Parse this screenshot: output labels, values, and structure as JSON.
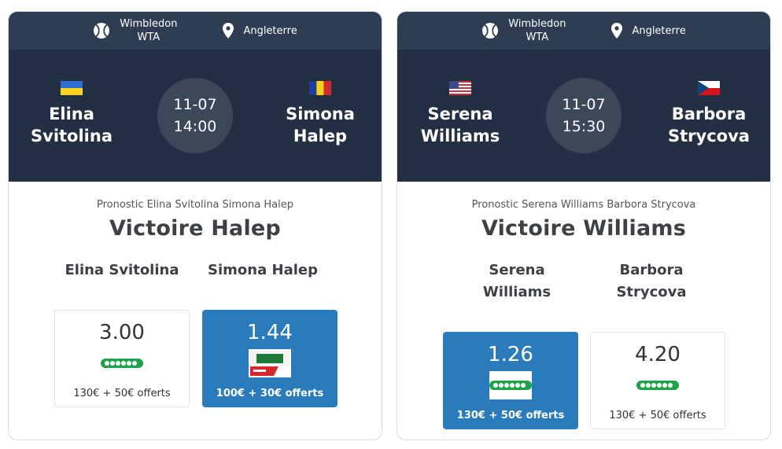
{
  "cards": [
    {
      "competition_line1": "Wimbledon",
      "competition_line2": "WTA",
      "country": "Angleterre",
      "player1": {
        "line1": "Elina",
        "line2": "Svitolina",
        "flag": "ukraine-flag"
      },
      "player2": {
        "line1": "Simona",
        "line2": "Halep",
        "flag": "romania-flag"
      },
      "date": "11-07",
      "time": "14:00",
      "pronostic_label": "Pronostic Elina Svitolina Simona Halep",
      "verdict": "Victoire Halep",
      "odds": [
        {
          "name_line1": "Elina Svitolina",
          "name_line2": "",
          "value": "3.00",
          "bookmaker": "unibet-logo",
          "bonus": "130€ + 50€ offerts",
          "selected": false
        },
        {
          "name_line1": "Simona Halep",
          "name_line2": "",
          "value": "1.44",
          "bookmaker": "pmu-sport-logo",
          "bonus": "100€ + 30€ offerts",
          "selected": true
        }
      ]
    },
    {
      "competition_line1": "Wimbledon",
      "competition_line2": "WTA",
      "country": "Angleterre",
      "player1": {
        "line1": "Serena",
        "line2": "Williams",
        "flag": "usa-flag"
      },
      "player2": {
        "line1": "Barbora",
        "line2": "Strycova",
        "flag": "czech-flag"
      },
      "date": "11-07",
      "time": "15:30",
      "pronostic_label": "Pronostic Serena Williams Barbora Strycova",
      "verdict": "Victoire Williams",
      "odds": [
        {
          "name_line1": "Serena",
          "name_line2": "Williams",
          "value": "1.26",
          "bookmaker": "unibet-logo",
          "bonus": "130€ + 50€ offerts",
          "selected": true
        },
        {
          "name_line1": "Barbora",
          "name_line2": "Strycova",
          "value": "4.20",
          "bookmaker": "unibet-logo",
          "bonus": "130€ + 50€ offerts",
          "selected": false
        }
      ]
    }
  ],
  "colors": {
    "info_bar": "#2e3d52",
    "header": "#232f42",
    "time_circle": "#3b4859",
    "selected_odd": "#2a7bbc",
    "unibet_green": "#1fa34a"
  }
}
